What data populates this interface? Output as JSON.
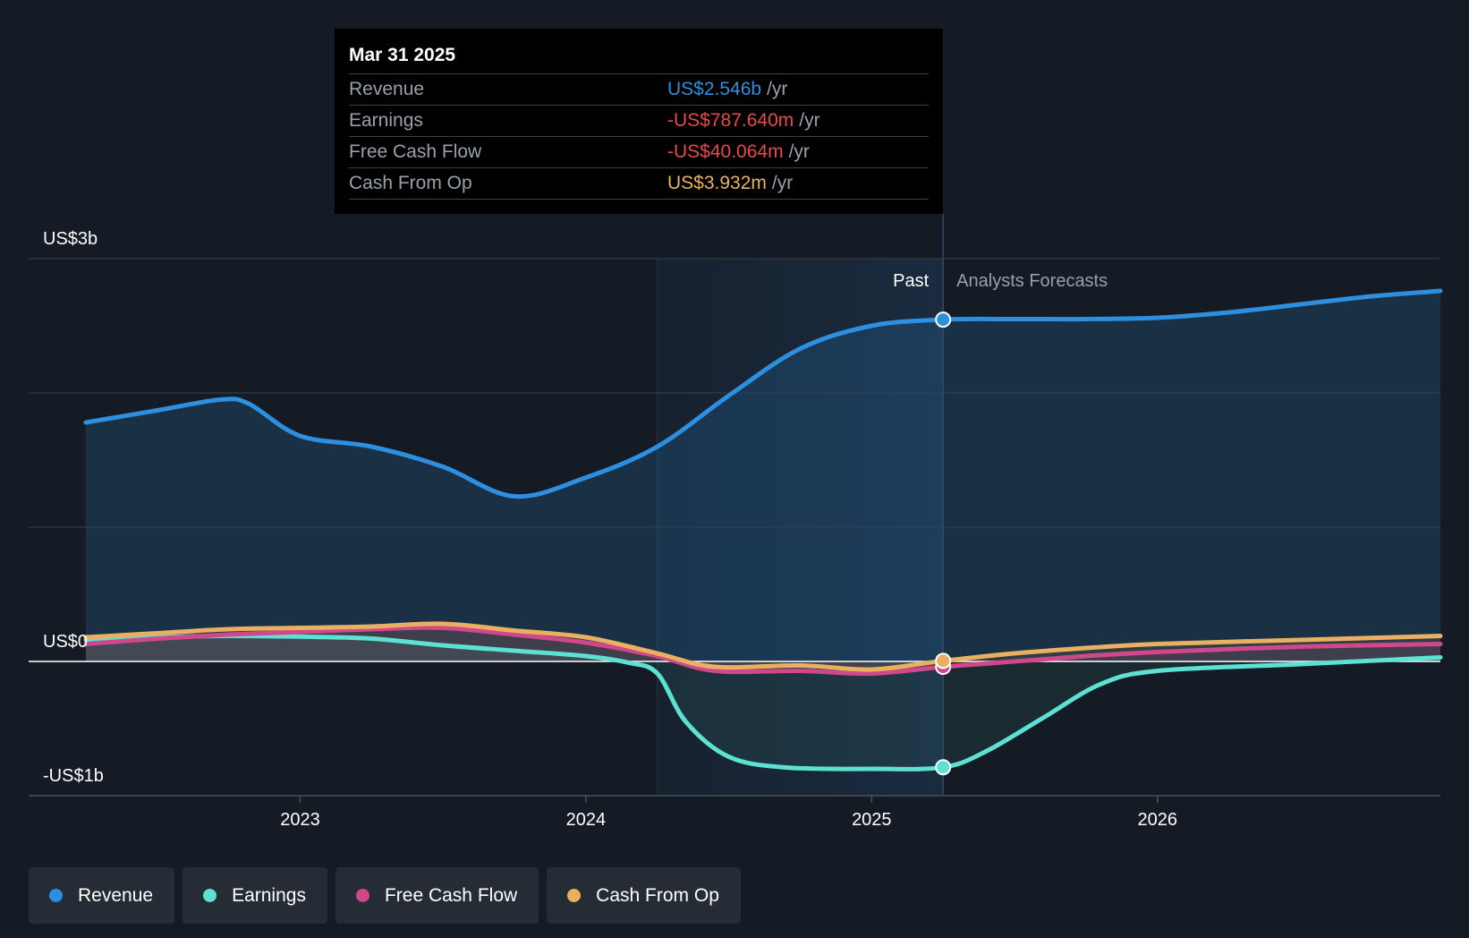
{
  "tooltip": {
    "date": "Mar 31 2025",
    "rows": [
      {
        "label": "Revenue",
        "value": "US$2.546b",
        "unit": "/yr",
        "color": "#2d8fe0"
      },
      {
        "label": "Earnings",
        "value": "-US$787.640m",
        "unit": "/yr",
        "color": "#e84a4a"
      },
      {
        "label": "Free Cash Flow",
        "value": "-US$40.064m",
        "unit": "/yr",
        "color": "#e84a4a"
      },
      {
        "label": "Cash From Op",
        "value": "US$3.932m",
        "unit": "/yr",
        "color": "#e8b060"
      }
    ]
  },
  "legend": [
    {
      "label": "Revenue",
      "color": "#2d8fe0"
    },
    {
      "label": "Earnings",
      "color": "#5ce1d2"
    },
    {
      "label": "Free Cash Flow",
      "color": "#d1478b"
    },
    {
      "label": "Cash From Op",
      "color": "#e8b060"
    }
  ],
  "chart_data": {
    "type": "line",
    "title": "",
    "xlabel": "",
    "ylabel": "",
    "y_unit": "US$ billions",
    "ylim": [
      -1.0,
      3.0
    ],
    "y_tick_labels": [
      {
        "value": 3.0,
        "label": "US$3b"
      },
      {
        "value": 0.0,
        "label": "US$0"
      },
      {
        "value": -1.0,
        "label": "-US$1b"
      }
    ],
    "y_gridlines": [
      3.0,
      2.0,
      1.0
    ],
    "xlim": [
      2022.05,
      2026.99
    ],
    "x_ticks": [
      {
        "value": 2023.0,
        "label": "2023"
      },
      {
        "value": 2024.0,
        "label": "2024"
      },
      {
        "value": 2025.0,
        "label": "2025"
      },
      {
        "value": 2026.0,
        "label": "2026"
      }
    ],
    "highlight_start": 2024.25,
    "divider_x": 2025.25,
    "past_label": "Past",
    "forecast_label": "Analysts Forecasts",
    "series": [
      {
        "name": "Revenue",
        "color": "#2d8fe0",
        "points": [
          [
            2022.25,
            1.78
          ],
          [
            2022.5,
            1.87
          ],
          [
            2022.72,
            1.95
          ],
          [
            2022.82,
            1.92
          ],
          [
            2023.0,
            1.68
          ],
          [
            2023.25,
            1.6
          ],
          [
            2023.5,
            1.45
          ],
          [
            2023.75,
            1.23
          ],
          [
            2024.0,
            1.37
          ],
          [
            2024.25,
            1.6
          ],
          [
            2024.5,
            1.98
          ],
          [
            2024.75,
            2.33
          ],
          [
            2025.0,
            2.5
          ],
          [
            2025.25,
            2.546
          ],
          [
            2025.5,
            2.55
          ],
          [
            2025.75,
            2.55
          ],
          [
            2026.0,
            2.56
          ],
          [
            2026.25,
            2.6
          ],
          [
            2026.5,
            2.66
          ],
          [
            2026.75,
            2.72
          ],
          [
            2026.99,
            2.76
          ]
        ]
      },
      {
        "name": "Earnings",
        "color": "#5ce1d2",
        "points": [
          [
            2022.25,
            0.16
          ],
          [
            2022.5,
            0.18
          ],
          [
            2022.75,
            0.19
          ],
          [
            2023.0,
            0.185
          ],
          [
            2023.25,
            0.17
          ],
          [
            2023.5,
            0.12
          ],
          [
            2023.75,
            0.08
          ],
          [
            2024.0,
            0.04
          ],
          [
            2024.15,
            -0.01
          ],
          [
            2024.25,
            -0.09
          ],
          [
            2024.35,
            -0.45
          ],
          [
            2024.5,
            -0.71
          ],
          [
            2024.7,
            -0.79
          ],
          [
            2025.0,
            -0.8
          ],
          [
            2025.25,
            -0.788
          ],
          [
            2025.4,
            -0.67
          ],
          [
            2025.6,
            -0.42
          ],
          [
            2025.8,
            -0.17
          ],
          [
            2026.0,
            -0.07
          ],
          [
            2026.5,
            -0.02
          ],
          [
            2026.99,
            0.03
          ]
        ]
      },
      {
        "name": "Free Cash Flow",
        "color": "#d1478b",
        "points": [
          [
            2022.25,
            0.13
          ],
          [
            2022.5,
            0.17
          ],
          [
            2022.75,
            0.2
          ],
          [
            2023.0,
            0.22
          ],
          [
            2023.25,
            0.24
          ],
          [
            2023.5,
            0.25
          ],
          [
            2023.75,
            0.2
          ],
          [
            2024.0,
            0.14
          ],
          [
            2024.25,
            0.04
          ],
          [
            2024.45,
            -0.07
          ],
          [
            2024.75,
            -0.07
          ],
          [
            2025.0,
            -0.09
          ],
          [
            2025.25,
            -0.04
          ],
          [
            2025.5,
            0.0
          ],
          [
            2025.75,
            0.04
          ],
          [
            2026.0,
            0.07
          ],
          [
            2026.5,
            0.11
          ],
          [
            2026.99,
            0.13
          ]
        ]
      },
      {
        "name": "Cash From Op",
        "color": "#e8b060",
        "points": [
          [
            2022.25,
            0.18
          ],
          [
            2022.5,
            0.21
          ],
          [
            2022.75,
            0.24
          ],
          [
            2023.0,
            0.25
          ],
          [
            2023.25,
            0.26
          ],
          [
            2023.5,
            0.28
          ],
          [
            2023.75,
            0.23
          ],
          [
            2024.0,
            0.18
          ],
          [
            2024.25,
            0.06
          ],
          [
            2024.45,
            -0.04
          ],
          [
            2024.75,
            -0.03
          ],
          [
            2025.0,
            -0.06
          ],
          [
            2025.25,
            0.004
          ],
          [
            2025.5,
            0.06
          ],
          [
            2025.75,
            0.1
          ],
          [
            2026.0,
            0.13
          ],
          [
            2026.5,
            0.16
          ],
          [
            2026.99,
            0.19
          ]
        ]
      }
    ],
    "markers": [
      {
        "series": "Revenue",
        "x": 2025.25,
        "y": 2.546
      },
      {
        "series": "Earnings",
        "x": 2025.25,
        "y": -0.788
      },
      {
        "series": "Free Cash Flow",
        "x": 2025.25,
        "y": -0.04
      },
      {
        "series": "Cash From Op",
        "x": 2025.25,
        "y": 0.004
      }
    ]
  }
}
